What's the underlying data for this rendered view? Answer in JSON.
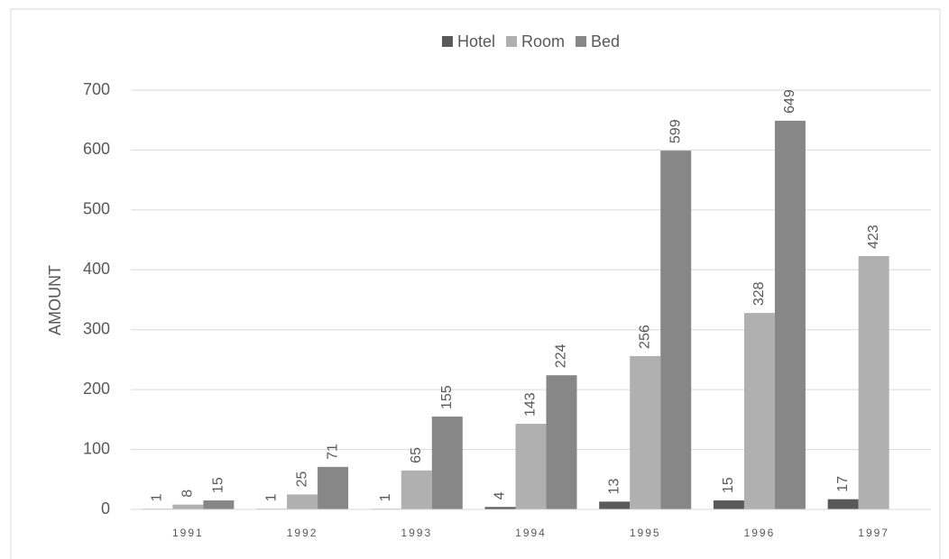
{
  "chart_data": {
    "type": "bar",
    "categories": [
      "1991",
      "1992",
      "1993",
      "1994",
      "1995",
      "1996",
      "1997"
    ],
    "series": [
      {
        "name": "Hotel",
        "color": "#595959",
        "values": [
          1,
          1,
          1,
          4,
          13,
          15,
          17
        ]
      },
      {
        "name": "Room",
        "color": "#b0b0b0",
        "values": [
          8,
          25,
          65,
          143,
          256,
          328,
          423
        ]
      },
      {
        "name": "Bed",
        "color": "#878787",
        "values": [
          15,
          71,
          155,
          224,
          599,
          649,
          null
        ]
      }
    ],
    "y_label": "AMOUNT",
    "ylim": [
      0,
      700
    ],
    "yticks": [
      0,
      100,
      200,
      300,
      400,
      500,
      600,
      700
    ],
    "grid": true,
    "legend": "top"
  }
}
